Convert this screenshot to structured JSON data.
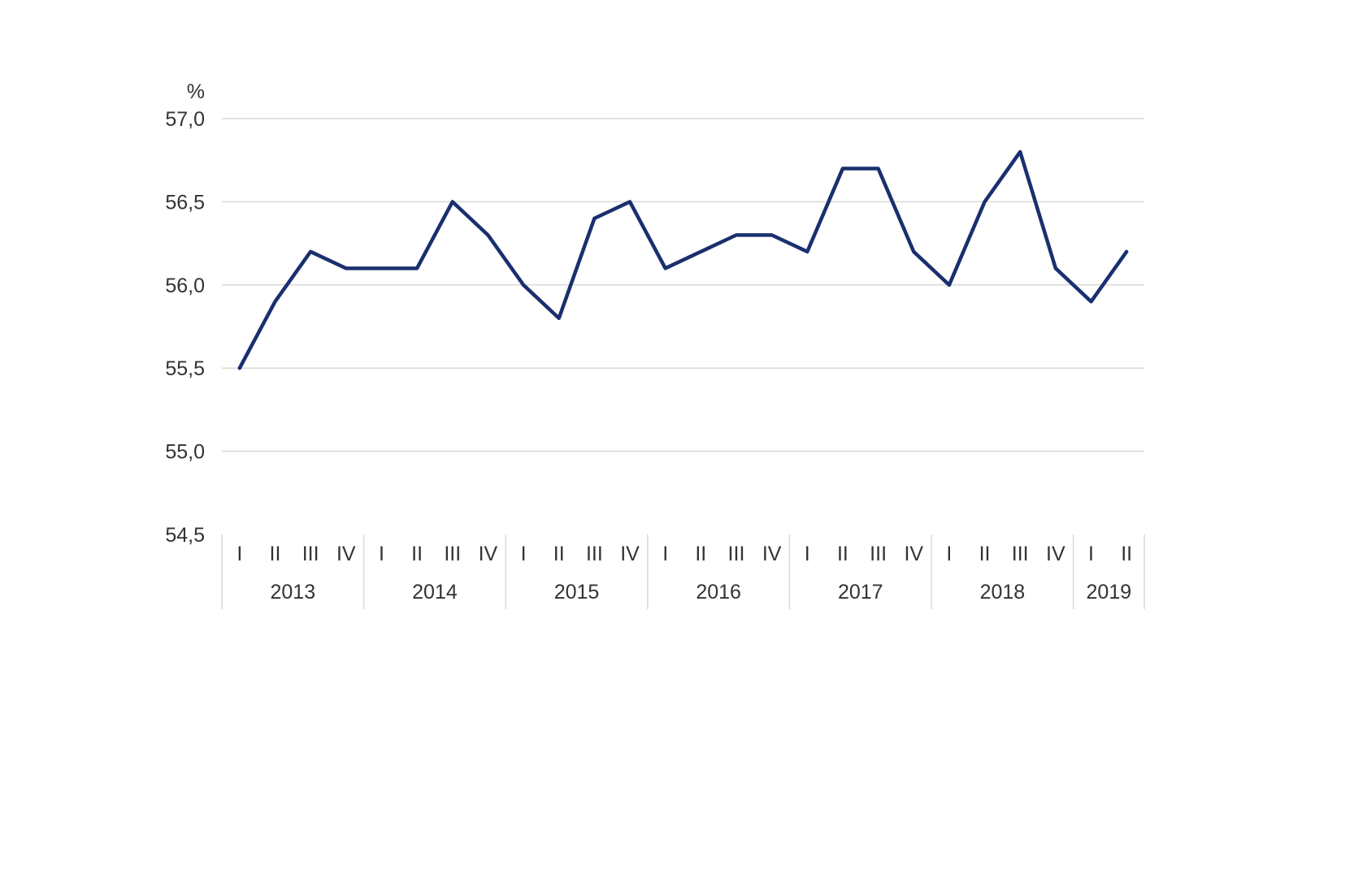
{
  "chart_data": {
    "type": "line",
    "unit": "%",
    "ylim": [
      54.5,
      57.0
    ],
    "yticks": [
      "54,5",
      "55,0",
      "55,5",
      "56,0",
      "56,5",
      "57,0"
    ],
    "ytick_values": [
      54.5,
      55.0,
      55.5,
      56.0,
      56.5,
      57.0
    ],
    "grid": true,
    "line_color": "#1a2f6e",
    "quarters": [
      "I",
      "II",
      "III",
      "IV",
      "I",
      "II",
      "III",
      "IV",
      "I",
      "II",
      "III",
      "IV",
      "I",
      "II",
      "III",
      "IV",
      "I",
      "II",
      "III",
      "IV",
      "I",
      "II",
      "III",
      "IV",
      "I",
      "II"
    ],
    "years": [
      {
        "label": "2013",
        "quarters": 4
      },
      {
        "label": "2014",
        "quarters": 4
      },
      {
        "label": "2015",
        "quarters": 4
      },
      {
        "label": "2016",
        "quarters": 4
      },
      {
        "label": "2017",
        "quarters": 4
      },
      {
        "label": "2018",
        "quarters": 4
      },
      {
        "label": "2019",
        "quarters": 2
      }
    ],
    "series": [
      {
        "values": [
          55.5,
          55.9,
          56.2,
          56.1,
          56.1,
          56.1,
          56.5,
          56.3,
          56.0,
          55.8,
          56.4,
          56.5,
          56.1,
          56.2,
          56.3,
          56.3,
          56.2,
          56.7,
          56.7,
          56.2,
          56.0,
          56.5,
          56.8,
          56.1,
          55.9,
          56.2
        ]
      }
    ]
  }
}
